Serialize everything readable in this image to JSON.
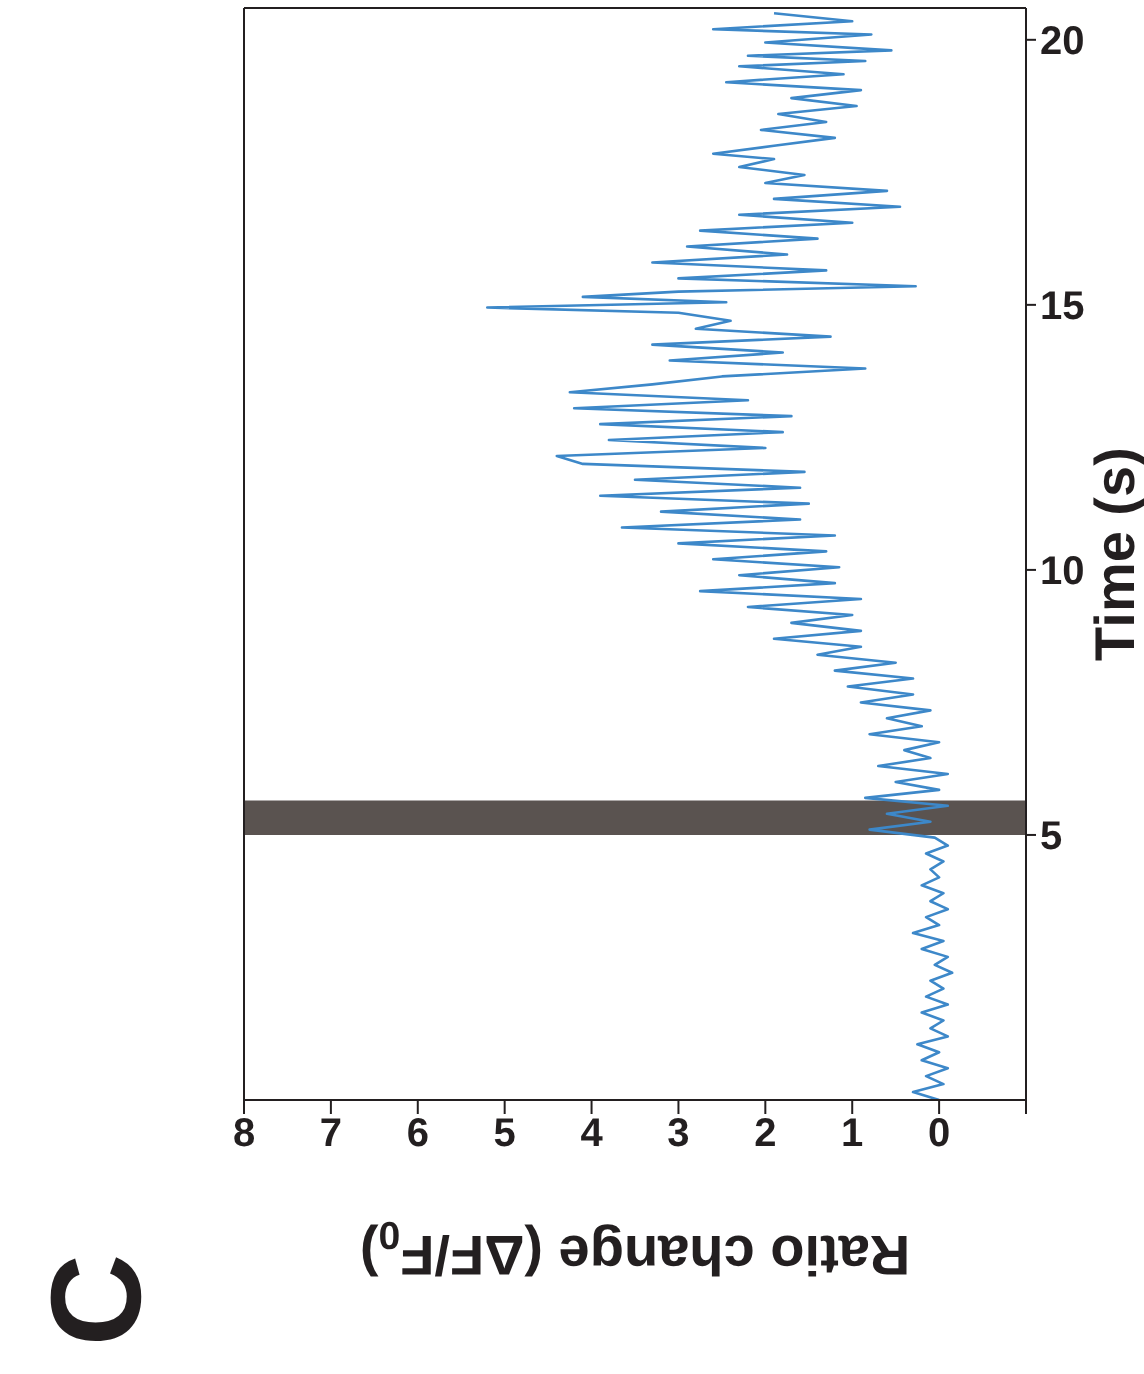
{
  "chart_data": {
    "type": "line",
    "xlabel": "Ratio change (ΔF/F$_{0}$)",
    "ylabel": "Time (s)",
    "annotations": [
      "C"
    ],
    "x": [
      0,
      0.3,
      -0.05,
      0.15,
      -0.1,
      0.2,
      0,
      0.25,
      -0.1,
      0.1,
      -0.05,
      0.2,
      -0.1,
      0.15,
      -0.05,
      0.1,
      -0.15,
      0.05,
      -0.1,
      0.2,
      -0.05,
      0.3,
      0,
      0.15,
      -0.1,
      0.1,
      -0.05,
      0.2,
      0,
      0.1,
      -0.05,
      0.15,
      -0.1,
      0.05,
      0.8,
      0.1,
      0.6,
      -0.1,
      0.85,
      0,
      0.5,
      -0.1,
      0.7,
      0.1,
      0.4,
      0,
      0.8,
      0.2,
      0.6,
      0.1,
      0.9,
      0.3,
      1.05,
      0.3,
      1.2,
      0.5,
      1.4,
      0.9,
      1.9,
      0.9,
      1.7,
      1,
      2.2,
      0.9,
      2.75,
      1.2,
      2.3,
      1.15,
      2.6,
      1.3,
      3,
      1.2,
      3.65,
      1.6,
      3.2,
      1.5,
      3.9,
      1.6,
      3.5,
      1.55,
      4.1,
      4.4,
      2,
      3.8,
      1.8,
      3.9,
      1.7,
      4.2,
      2.2,
      4.25,
      3.3,
      2.5,
      0.85,
      3.1,
      1.8,
      3.3,
      1.25,
      2.8,
      2.4,
      3,
      5.2,
      2.45,
      4.1,
      3,
      0.27,
      3,
      1.3,
      3.3,
      1.75,
      2.9,
      1.4,
      2.75,
      1,
      2.3,
      0.45,
      1.9,
      0.6,
      2,
      1.55,
      2.3,
      1.9,
      2.6,
      1.9,
      1.2,
      2.05,
      1.3,
      1.85,
      0.95,
      1.7,
      0.9,
      2.45,
      1.1,
      2.3,
      0.85,
      2.2,
      0.55,
      2,
      0.78,
      2.6,
      1,
      1.9
    ],
    "series": [
      {
        "color": "#3d88c9",
        "values": [
          0,
          0.15,
          0.3,
          0.45,
          0.6,
          0.75,
          0.9,
          1.05,
          1.2,
          1.35,
          1.5,
          1.65,
          1.8,
          1.95,
          2.1,
          2.25,
          2.4,
          2.55,
          2.7,
          2.85,
          3,
          3.15,
          3.3,
          3.45,
          3.6,
          3.75,
          3.9,
          4.05,
          4.2,
          4.35,
          4.5,
          4.65,
          4.8,
          4.95,
          5.1,
          5.25,
          5.4,
          5.55,
          5.7,
          5.85,
          6,
          6.15,
          6.3,
          6.45,
          6.6,
          6.75,
          6.9,
          7.05,
          7.2,
          7.35,
          7.5,
          7.65,
          7.8,
          7.95,
          8.1,
          8.25,
          8.4,
          8.55,
          8.7,
          8.85,
          9,
          9.15,
          9.3,
          9.45,
          9.6,
          9.75,
          9.9,
          10.05,
          10.2,
          10.35,
          10.5,
          10.65,
          10.8,
          10.95,
          11.1,
          11.25,
          11.4,
          11.55,
          11.7,
          11.85,
          12,
          12.15,
          12.3,
          12.45,
          12.6,
          12.75,
          12.9,
          13.05,
          13.2,
          13.35,
          13.5,
          13.65,
          13.8,
          13.95,
          14.1,
          14.25,
          14.4,
          14.55,
          14.7,
          14.85,
          14.95,
          15.05,
          15.15,
          15.25,
          15.35,
          15.5,
          15.65,
          15.8,
          15.95,
          16.1,
          16.25,
          16.4,
          16.55,
          16.7,
          16.85,
          17,
          17.15,
          17.3,
          17.45,
          17.6,
          17.75,
          17.85,
          18,
          18.15,
          18.3,
          18.45,
          18.6,
          18.75,
          18.9,
          19.05,
          19.2,
          19.35,
          19.5,
          19.6,
          19.7,
          19.8,
          19.95,
          20.1,
          20.2,
          20.35,
          20.5
        ]
      }
    ],
    "xlim": [
      8,
      -1
    ],
    "xticks": [
      8,
      7,
      6,
      5,
      4,
      3,
      2,
      1,
      0,
      {
        "value": -1,
        "label": null
      }
    ],
    "ylim": [
      0,
      20.6
    ],
    "yticks": [
      5,
      10,
      15,
      20
    ],
    "bands": [
      {
        "axis": "y",
        "from": 5,
        "to": 5.65,
        "color": "#5a5350"
      }
    ],
    "grid": false,
    "legend": false
  }
}
